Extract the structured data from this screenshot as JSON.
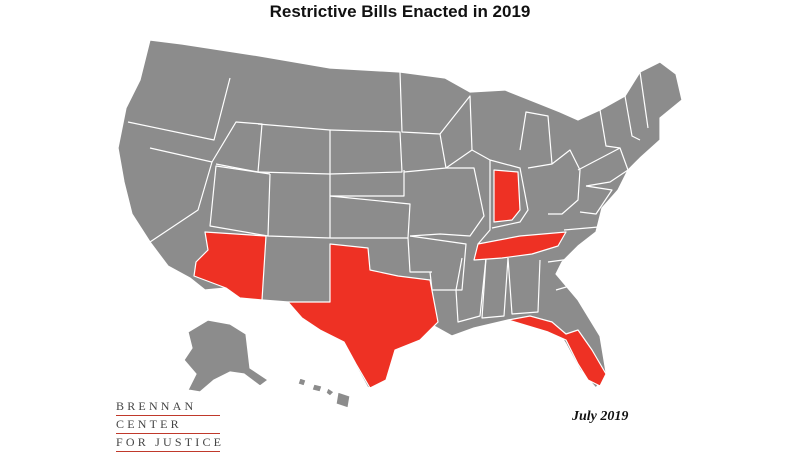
{
  "title": "Restrictive Bills Enacted in 2019",
  "date_note": "July 2019",
  "logo": {
    "line1": "BRENNAN",
    "line2": "CENTER",
    "line3": "FOR JUSTICE"
  },
  "colors": {
    "restrictive": "#ee3124",
    "other": "#8c8c8c",
    "border": "#ffffff"
  },
  "highlighted_states": [
    "Arizona",
    "Texas",
    "Indiana",
    "Tennessee",
    "Florida"
  ]
}
